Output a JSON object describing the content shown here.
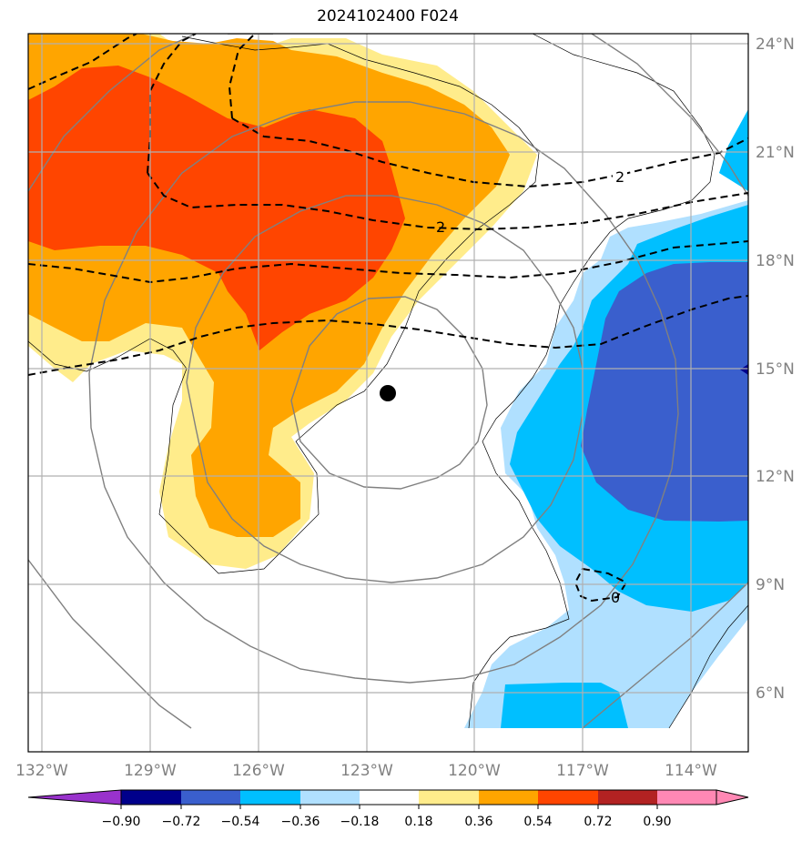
{
  "title": "2024102400 F024",
  "map": {
    "lat_labels": [
      "24°N",
      "21°N",
      "18°N",
      "15°N",
      "12°N",
      "9°N",
      "6°N"
    ],
    "lon_labels": [
      "132°W",
      "129°W",
      "126°W",
      "123°W",
      "120°W",
      "117°W",
      "114°W"
    ],
    "contour_labels": [
      "2",
      "2",
      "0"
    ],
    "center_marker": "storm-center-dot"
  },
  "colorbar": {
    "ticks": [
      "−0.90",
      "−0.72",
      "−0.54",
      "−0.36",
      "−0.18",
      "0.18",
      "0.36",
      "0.54",
      "0.72",
      "0.90"
    ],
    "colors": [
      "#9932cc",
      "#00008b",
      "#3a5fcd",
      "#00bfff",
      "#b0e0ff",
      "#ffffff",
      "#ffec8b",
      "#ffa500",
      "#ff4500",
      "#b22222",
      "#ff88b4"
    ]
  },
  "colors": {
    "orange": "#ffa500",
    "red_orange": "#ff4500",
    "light_yellow": "#ffec8b",
    "light_blue": "#b0e0ff",
    "deep_sky_blue": "#00bfff",
    "royal_blue": "#3a5fcd"
  }
}
